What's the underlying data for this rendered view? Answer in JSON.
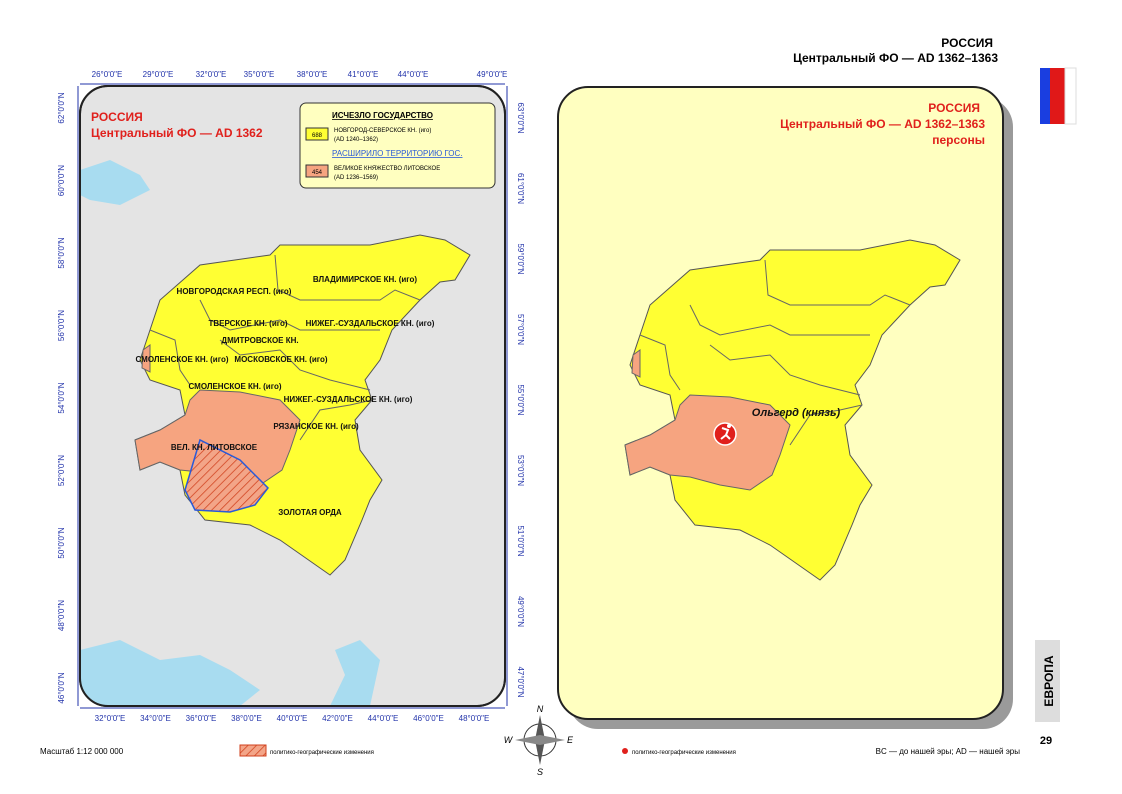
{
  "header": {
    "title": "РОССИЯ",
    "subtitle": "Центральный ФО — AD 1362–1363"
  },
  "left_map": {
    "title": "РОССИЯ",
    "subtitle": "Центральный ФО — AD 1362",
    "legend": {
      "heading1": "ИСЧЕЗЛО ГОСУДАРСТВО",
      "code1": "688",
      "item1": "НОВГОРОД-СЕВЕРСКОЕ КН. (иго)",
      "dates1": "(AD 1240–1362)",
      "heading2": "РАСШИРИЛО ТЕРРИТОРИЮ ГОС.",
      "code2": "454",
      "item2": "ВЕЛИКОЕ КНЯЖЕСТВО ЛИТОВСКОЕ",
      "dates2": "(AD 1236–1569)"
    },
    "top_ticks": [
      "26°0'0\"E",
      "29°0'0\"E",
      "32°0'0\"E",
      "35°0'0\"E",
      "38°0'0\"E",
      "41°0'0\"E",
      "44°0'0\"E",
      "49°0'0\"E"
    ],
    "bottom_ticks": [
      "32°0'0\"E",
      "34°0'0\"E",
      "36°0'0\"E",
      "38°0'0\"E",
      "40°0'0\"E",
      "42°0'0\"E",
      "44°0'0\"E",
      "46°0'0\"E",
      "48°0'0\"E"
    ],
    "left_ticks": [
      "62°0'0\"N",
      "60°0'0\"N",
      "58°0'0\"N",
      "56°0'0\"N",
      "54°0'0\"N",
      "52°0'0\"N",
      "50°0'0\"N",
      "48°0'0\"N",
      "46°0'0\"N"
    ],
    "right_ticks": [
      "63°0'0\"N",
      "61°0'0\"N",
      "59°0'0\"N",
      "57°0'0\"N",
      "55°0'0\"N",
      "53°0'0\"N",
      "51°0'0\"N",
      "49°0'0\"N",
      "47°0'0\"N"
    ],
    "regions": [
      "ВЛАДИМИРСКОЕ КН. (иго)",
      "НОВГОРОДСКАЯ РЕСП. (иго)",
      "ТВЕРСКОЕ КН. (иго)",
      "НИЖЕГ.-СУЗДАЛЬСКОЕ КН. (иго)",
      "ДМИТРОВСКОЕ КН.",
      "СМОЛЕНСКОЕ КН. (иго)",
      "МОСКОВСКОЕ КН. (иго)",
      "СМОЛЕНСКОЕ КН. (иго)",
      "НИЖЕГ.-СУЗДАЛЬСКОЕ КН. (иго)",
      "РЯЗАНСКОЕ КН. (иго)",
      "ВЕЛ. КН. ЛИТОВСКОЕ",
      "ЗОЛОТАЯ ОРДА"
    ]
  },
  "right_map": {
    "title": "РОССИЯ",
    "subtitle": "Центральный ФО — AD 1362–1363",
    "subtitle2": "персоны",
    "person": "Ольгерд (князь)"
  },
  "compass": [
    "N",
    "W",
    "E",
    "S"
  ],
  "footer": {
    "scale": "Масштаб 1:12 000 000",
    "legend_hatch": "политико-географические изменения",
    "legend_dot": "политико-географические изменения",
    "note": "BC — до нашей эры; AD — нашей эры",
    "section": "ЕВРОПА",
    "page": "29"
  }
}
